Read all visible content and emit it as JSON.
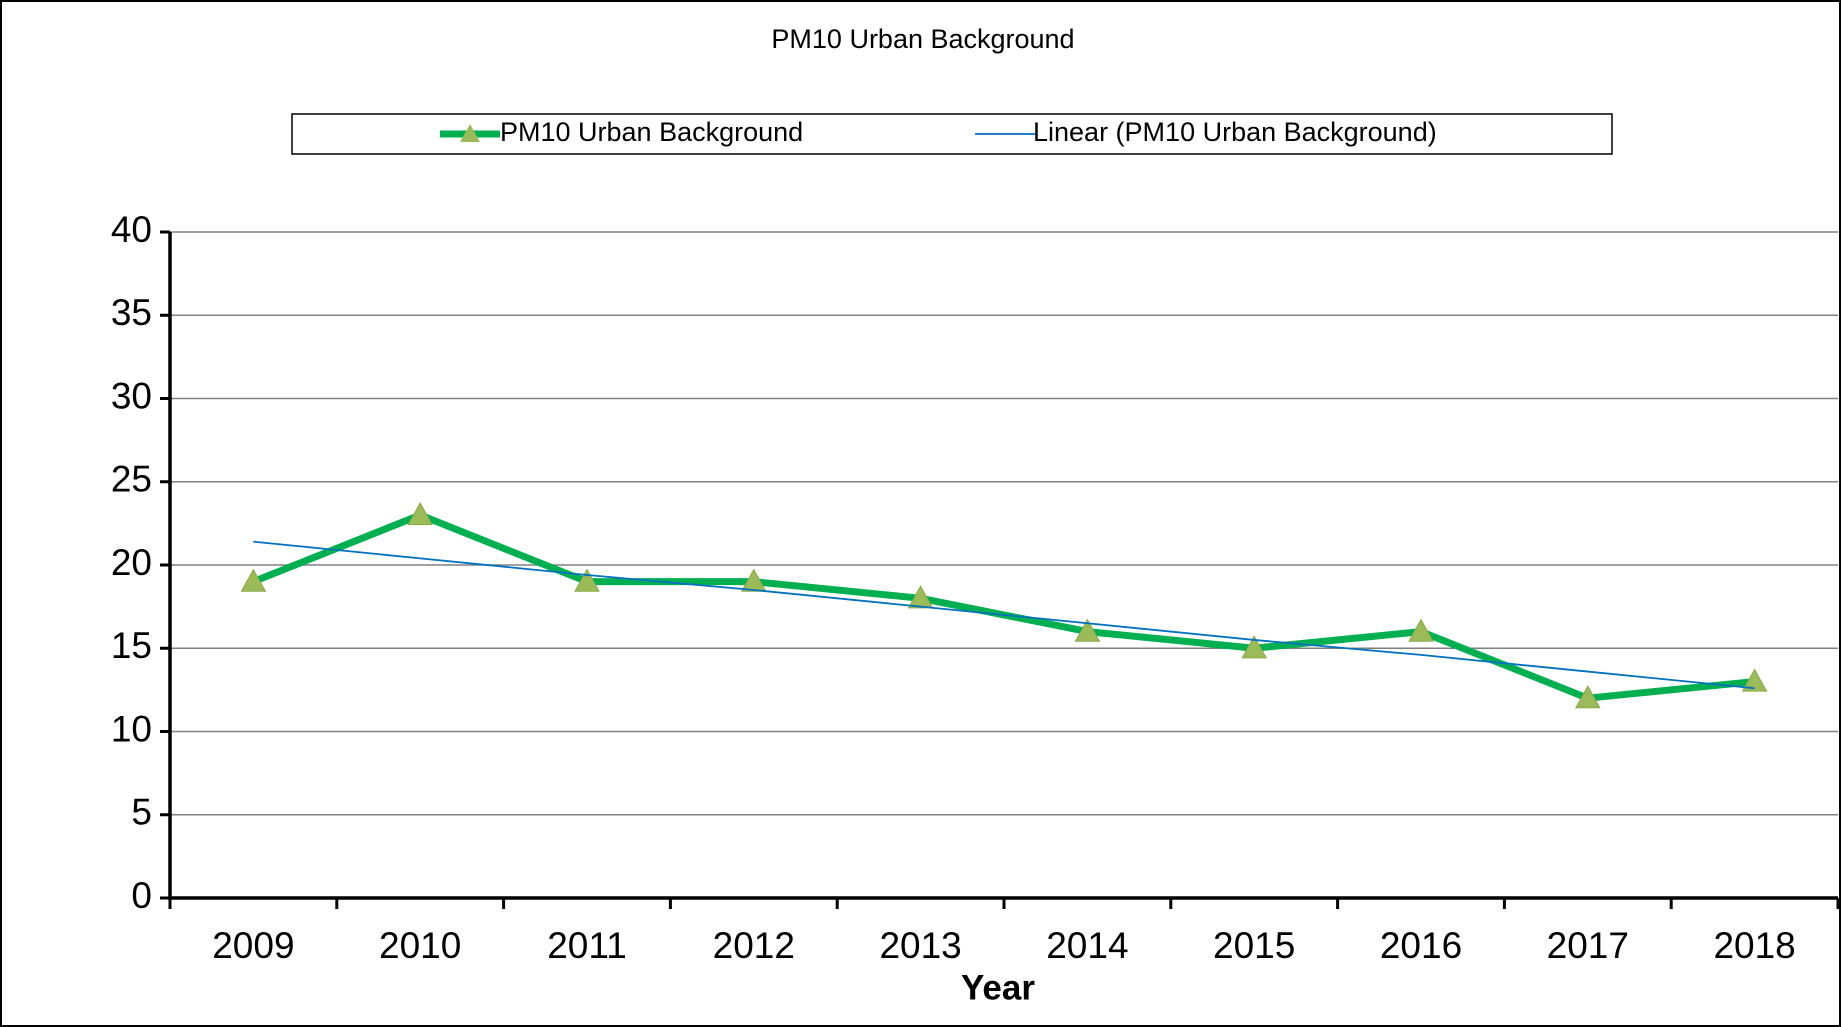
{
  "chart_data": {
    "type": "line",
    "title": "PM10 Urban Background",
    "x_label": "Year",
    "categories": [
      "2009",
      "2010",
      "2011",
      "2012",
      "2013",
      "2014",
      "2015",
      "2016",
      "2017",
      "2018"
    ],
    "series": [
      {
        "name": "PM10 Urban Background",
        "color": "#00b050",
        "marker_color": "#9bbb59",
        "values": [
          19,
          23,
          19,
          19,
          18,
          16,
          15,
          16,
          12,
          13
        ]
      },
      {
        "name": "Linear (PM10 Urban Background)",
        "color": "#0070c0",
        "values": [
          21.4,
          20.4,
          19.4,
          18.5,
          17.5,
          16.5,
          15.5,
          14.6,
          13.6,
          12.6
        ]
      }
    ],
    "ylim": [
      0,
      40
    ],
    "yticks": [
      0,
      5,
      10,
      15,
      20,
      25,
      30,
      35,
      40
    ],
    "grid": true,
    "legend": "top"
  }
}
